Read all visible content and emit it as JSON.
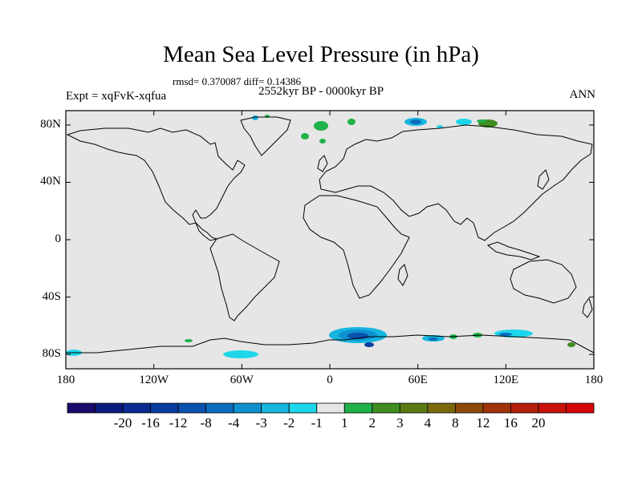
{
  "title": "Mean Sea Level Pressure (in hPa)",
  "stats": "rmsd= 0.370087 diff= 0.14386",
  "period": "2552kyr BP - 0000kyr BP",
  "experiment": "Expt = xqFvK-xqfua",
  "season": "ANN",
  "y_ticks": [
    {
      "label": "80N",
      "lat": 80
    },
    {
      "label": "40N",
      "lat": 40
    },
    {
      "label": "0",
      "lat": 0
    },
    {
      "label": "40S",
      "lat": -40
    },
    {
      "label": "80S",
      "lat": -80
    }
  ],
  "x_ticks": [
    {
      "label": "180",
      "lon": -180
    },
    {
      "label": "120W",
      "lon": -120
    },
    {
      "label": "60W",
      "lon": -60
    },
    {
      "label": "0",
      "lon": 0
    },
    {
      "label": "60E",
      "lon": 60
    },
    {
      "label": "120E",
      "lon": 120
    },
    {
      "label": "180",
      "lon": 180
    }
  ],
  "colorbar": {
    "labels": [
      "-20",
      "-16",
      "-12",
      "-8",
      "-4",
      "-3",
      "-2",
      "-1",
      "1",
      "2",
      "3",
      "4",
      "8",
      "12",
      "16",
      "20"
    ],
    "colors": [
      "#1b0a6b",
      "#0d1a80",
      "#0a2b92",
      "#0a3c9f",
      "#0b52ae",
      "#0a6dbe",
      "#0f91cf",
      "#16b5df",
      "#1dd6ea",
      "#e6e6e6",
      "#1fb24a",
      "#3f8c1f",
      "#5a7a13",
      "#7a6a0d",
      "#8d4a0a",
      "#a1330a",
      "#b51f0a",
      "#c8110a",
      "#d40606"
    ]
  },
  "map": {
    "background": "#e6e6e6",
    "lon_range": [
      -180,
      180
    ],
    "lat_range": [
      -90,
      90
    ]
  }
}
